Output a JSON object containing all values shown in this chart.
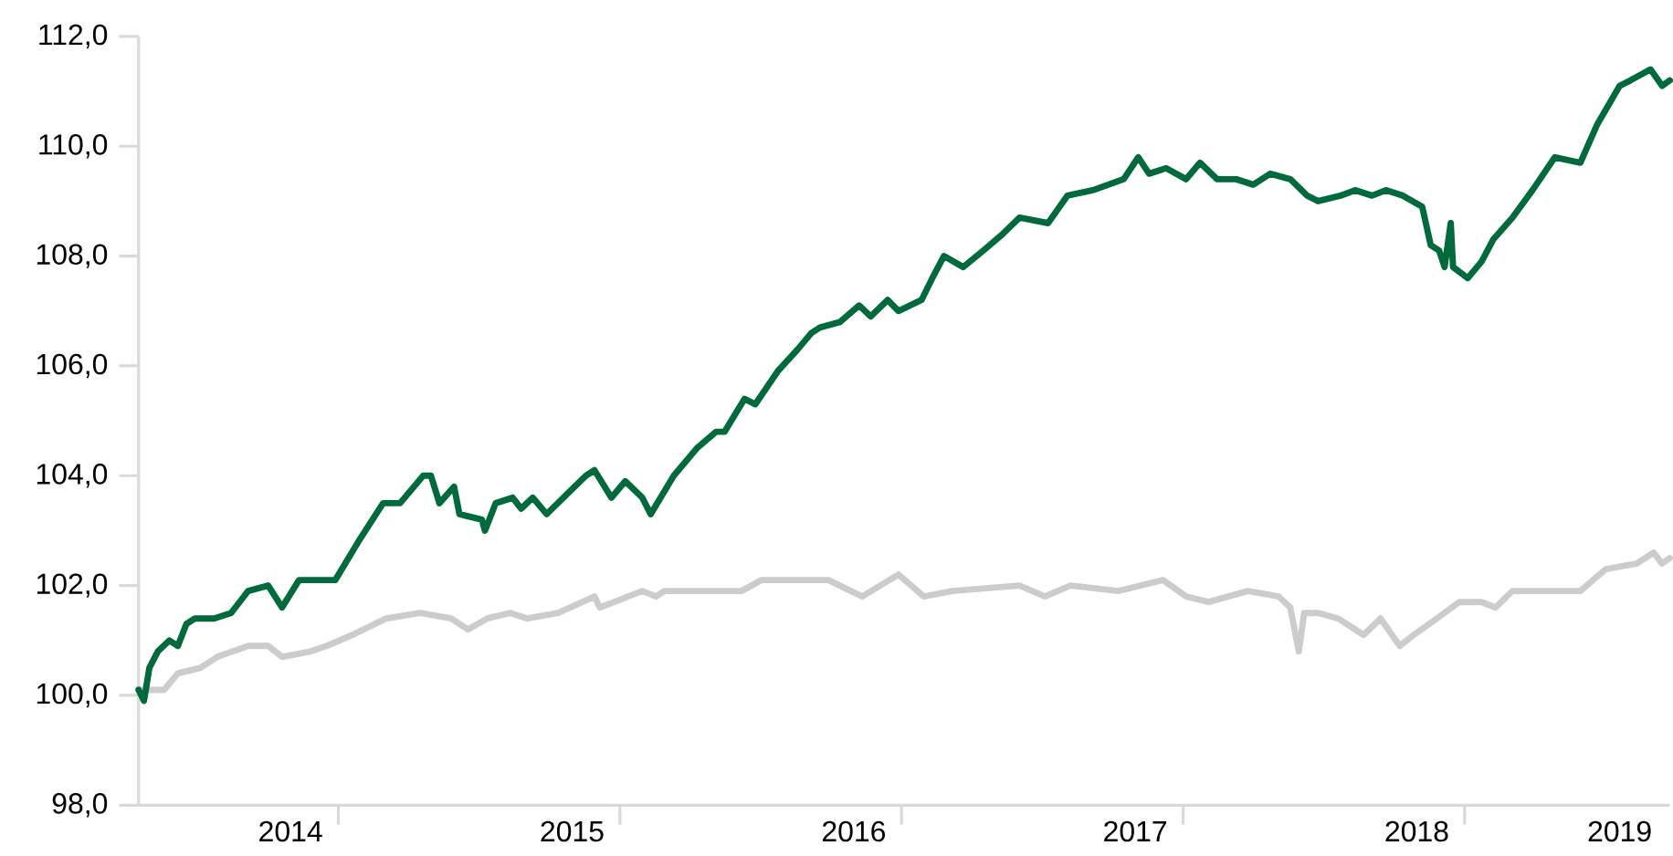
{
  "chart_data": {
    "type": "line",
    "xlim": [
      "2014-04-17",
      "2019-09-24"
    ],
    "ylim": [
      98,
      112
    ],
    "xticks": [
      {
        "value": "2014-10-31",
        "label": "2014"
      },
      {
        "value": "2015-01-01",
        "label": null
      },
      {
        "value": "2015-10-31",
        "label": "2015"
      },
      {
        "value": "2016-01-01",
        "label": null
      },
      {
        "value": "2016-10-31",
        "label": "2016"
      },
      {
        "value": "2017-01-01",
        "label": null
      },
      {
        "value": "2017-10-31",
        "label": "2017"
      },
      {
        "value": "2018-01-01",
        "label": null
      },
      {
        "value": "2018-10-31",
        "label": "2018"
      },
      {
        "value": "2019-01-01",
        "label": null
      },
      {
        "value": "2019-07-21",
        "label": "2019"
      }
    ],
    "yticks": [
      {
        "value": 98,
        "label": "98,0"
      },
      {
        "value": 100,
        "label": "100,0"
      },
      {
        "value": 102,
        "label": "102,0"
      },
      {
        "value": 104,
        "label": "104,0"
      },
      {
        "value": 106,
        "label": "106,0"
      },
      {
        "value": 108,
        "label": "108,0"
      },
      {
        "value": 110,
        "label": "110,0"
      },
      {
        "value": 112,
        "label": "112,0"
      }
    ],
    "grid": false,
    "marker": "none",
    "line_style": "solid",
    "series": [
      {
        "color": "#cccccc",
        "x": [
          "2014-04-17",
          "2014-05-20",
          "2014-06-07",
          "2014-07-06",
          "2014-07-28",
          "2014-09-06",
          "2014-10-02",
          "2014-10-20",
          "2014-11-26",
          "2014-12-17",
          "2015-01-19",
          "2015-03-04",
          "2015-04-17",
          "2015-05-27",
          "2015-06-18",
          "2015-07-13",
          "2015-08-12",
          "2015-09-03",
          "2015-10-13",
          "2015-11-29",
          "2015-12-06",
          "2016-01-30",
          "2016-02-17",
          "2016-02-28",
          "2016-03-11",
          "2016-06-07",
          "2016-07-03",
          "2016-08-26",
          "2016-09-28",
          "2016-11-11",
          "2016-12-28",
          "2017-01-30",
          "2017-03-08",
          "2017-06-03",
          "2017-07-06",
          "2017-08-08",
          "2017-10-09",
          "2017-12-06",
          "2018-01-05",
          "2018-02-03",
          "2018-03-26",
          "2018-05-05",
          "2018-05-20",
          "2018-05-31",
          "2018-06-07",
          "2018-06-25",
          "2018-07-21",
          "2018-08-23",
          "2018-09-14",
          "2018-10-09",
          "2018-10-27",
          "2018-11-26",
          "2018-12-25",
          "2019-01-23",
          "2019-02-10",
          "2019-03-04",
          "2019-04-28",
          "2019-05-31",
          "2019-07-03",
          "2019-08-12",
          "2019-09-03",
          "2019-09-14",
          "2019-09-24"
        ],
        "values": [
          100.1,
          100.1,
          100.4,
          100.5,
          100.7,
          100.9,
          100.9,
          100.7,
          100.8,
          100.9,
          101.1,
          101.4,
          101.5,
          101.4,
          101.2,
          101.4,
          101.5,
          101.4,
          101.5,
          101.8,
          101.6,
          101.9,
          101.8,
          101.9,
          101.9,
          101.9,
          102.1,
          102.1,
          102.1,
          101.8,
          102.2,
          101.8,
          101.9,
          102.0,
          101.8,
          102.0,
          101.9,
          102.1,
          101.8,
          101.7,
          101.9,
          101.8,
          101.6,
          100.8,
          101.5,
          101.5,
          101.4,
          101.1,
          101.4,
          100.9,
          101.1,
          101.4,
          101.7,
          101.7,
          101.6,
          101.9,
          101.9,
          101.9,
          102.3,
          102.4,
          102.6,
          102.4,
          102.5
        ]
      },
      {
        "color": "#006a3d",
        "x": [
          "2014-04-17",
          "2014-04-24",
          "2014-05-01",
          "2014-05-12",
          "2014-05-27",
          "2014-06-07",
          "2014-06-18",
          "2014-06-29",
          "2014-07-24",
          "2014-08-15",
          "2014-09-06",
          "2014-10-02",
          "2014-10-20",
          "2014-11-11",
          "2014-12-06",
          "2014-12-28",
          "2015-01-27",
          "2015-02-28",
          "2015-03-22",
          "2015-04-21",
          "2015-05-01",
          "2015-05-12",
          "2015-05-31",
          "2015-06-07",
          "2015-07-06",
          "2015-07-10",
          "2015-07-24",
          "2015-08-15",
          "2015-08-26",
          "2015-09-10",
          "2015-09-28",
          "2015-10-27",
          "2015-11-18",
          "2015-11-29",
          "2015-12-21",
          "2016-01-08",
          "2016-01-30",
          "2016-02-10",
          "2016-03-11",
          "2016-04-10",
          "2016-05-05",
          "2016-05-16",
          "2016-06-11",
          "2016-06-25",
          "2016-07-24",
          "2016-08-19",
          "2016-09-06",
          "2016-09-17",
          "2016-10-13",
          "2016-11-07",
          "2016-11-22",
          "2016-12-14",
          "2016-12-28",
          "2017-01-27",
          "2017-02-10",
          "2017-02-25",
          "2017-03-22",
          "2017-04-17",
          "2017-05-12",
          "2017-06-03",
          "2017-07-10",
          "2017-08-04",
          "2017-09-06",
          "2017-10-16",
          "2017-11-04",
          "2017-11-18",
          "2017-12-10",
          "2018-01-05",
          "2018-01-23",
          "2018-02-14",
          "2018-03-11",
          "2018-04-02",
          "2018-04-24",
          "2018-05-20",
          "2018-06-11",
          "2018-06-25",
          "2018-07-24",
          "2018-08-12",
          "2018-09-03",
          "2018-09-21",
          "2018-10-13",
          "2018-11-07",
          "2018-11-18",
          "2018-11-29",
          "2018-12-06",
          "2018-12-14",
          "2018-12-17",
          "2019-01-05",
          "2019-01-23",
          "2019-02-07",
          "2019-03-04",
          "2019-03-30",
          "2019-04-28",
          "2019-05-31",
          "2019-06-22",
          "2019-07-21",
          "2019-08-04",
          "2019-08-30",
          "2019-09-14",
          "2019-09-24"
        ],
        "values": [
          100.1,
          99.9,
          100.5,
          100.8,
          101.0,
          100.9,
          101.3,
          101.4,
          101.4,
          101.5,
          101.9,
          102.0,
          101.6,
          102.1,
          102.1,
          102.1,
          102.8,
          103.5,
          103.5,
          104.0,
          104.0,
          103.5,
          103.8,
          103.3,
          103.2,
          103.0,
          103.5,
          103.6,
          103.4,
          103.6,
          103.3,
          103.7,
          104.0,
          104.1,
          103.6,
          103.9,
          103.6,
          103.3,
          104.0,
          104.5,
          104.8,
          104.8,
          105.4,
          105.3,
          105.9,
          106.3,
          106.6,
          106.7,
          106.8,
          107.1,
          106.9,
          107.2,
          107.0,
          107.2,
          107.6,
          108.0,
          107.8,
          108.1,
          108.4,
          108.7,
          108.6,
          109.1,
          109.2,
          109.4,
          109.8,
          109.5,
          109.6,
          109.4,
          109.7,
          109.4,
          109.4,
          109.3,
          109.5,
          109.4,
          109.1,
          109.0,
          109.1,
          109.2,
          109.1,
          109.2,
          109.1,
          108.9,
          108.2,
          108.1,
          107.8,
          108.6,
          107.8,
          107.6,
          107.9,
          108.3,
          108.7,
          109.2,
          109.8,
          109.7,
          110.4,
          111.1,
          111.2,
          111.4,
          111.1,
          111.2
        ]
      }
    ]
  }
}
